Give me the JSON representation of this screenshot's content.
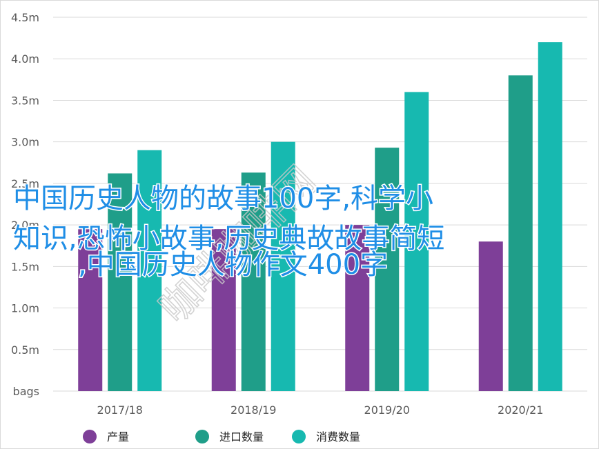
{
  "chart_data": {
    "type": "bar",
    "categories": [
      "2017/18",
      "2018/19",
      "2019/20",
      "2020/21"
    ],
    "series": [
      {
        "name": "产量",
        "values": [
          1.95,
          1.95,
          2.0,
          1.8
        ],
        "color": "#7e3f98"
      },
      {
        "name": "进口数量",
        "values": [
          2.62,
          2.63,
          2.93,
          3.8
        ],
        "color": "#1f9e89"
      },
      {
        "name": "消费数量",
        "values": [
          2.9,
          3.0,
          3.6,
          4.2
        ],
        "color": "#17b9b0"
      }
    ],
    "yticks": [
      "bags",
      "0.5m",
      "1.0m",
      "1.5m",
      "2.0m",
      "2.5m",
      "3.0m",
      "3.5m",
      "4.0m",
      "4.5m"
    ],
    "ylim": [
      0,
      4.5
    ],
    "grid": true,
    "legend": "bottom"
  },
  "overlay_text": {
    "lines": [
      "中国历史人物的故事100字,科学小",
      "知识,恐怖小故事,历史典故故事简短",
      ",中国历史人物作文400字"
    ]
  },
  "watermark": "咖啡咖啡网",
  "colors": {
    "accent": "#1f8ee6"
  }
}
